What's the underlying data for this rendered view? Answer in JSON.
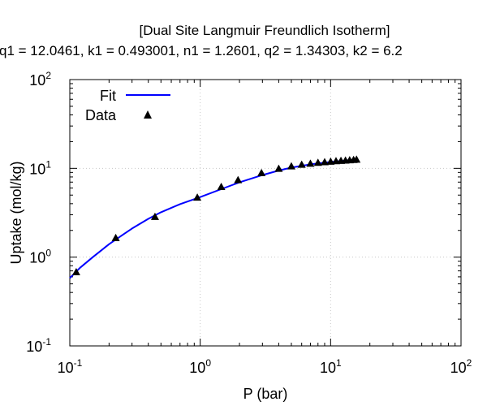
{
  "chart_data": {
    "type": "line",
    "title": "[Dual Site Langmuir Freundlich Isotherm]",
    "subtitle": "q1 = 12.0461, k1 = 0.493001, n1 = 1.2601, q2 = 1.34303, k2 = 6.2",
    "xlabel": "P (bar)",
    "ylabel": "Uptake (mol/kg)",
    "x_scale": "log",
    "y_scale": "log",
    "xlim": [
      0.1,
      100
    ],
    "ylim": [
      0.1,
      100
    ],
    "x_ticks": [
      {
        "base": "10",
        "exp": "-1",
        "value": 0.1
      },
      {
        "base": "10",
        "exp": "0",
        "value": 1
      },
      {
        "base": "10",
        "exp": "1",
        "value": 10
      },
      {
        "base": "10",
        "exp": "2",
        "value": 100
      }
    ],
    "y_ticks": [
      {
        "base": "10",
        "exp": "-1",
        "value": 0.1
      },
      {
        "base": "10",
        "exp": "0",
        "value": 1
      },
      {
        "base": "10",
        "exp": "1",
        "value": 10
      },
      {
        "base": "10",
        "exp": "2",
        "value": 100
      }
    ],
    "grid": true,
    "legend_position": "top-left",
    "series": [
      {
        "name": "Fit",
        "kind": "line",
        "color": "#0000ff",
        "x": [
          0.1,
          0.12,
          0.15,
          0.2,
          0.25,
          0.3,
          0.4,
          0.5,
          0.7,
          1.0,
          1.5,
          2.0,
          3.0,
          4.0,
          5.0,
          7.0,
          10.0,
          13.0,
          15.8
        ],
        "y": [
          0.58,
          0.76,
          1.0,
          1.4,
          1.75,
          2.1,
          2.7,
          3.2,
          3.95,
          4.75,
          5.95,
          6.95,
          8.4,
          9.45,
          10.2,
          11.1,
          11.8,
          12.2,
          12.5
        ]
      },
      {
        "name": "Data",
        "kind": "scatter",
        "marker": "triangle",
        "color": "#000000",
        "x": [
          0.112,
          0.225,
          0.45,
          0.95,
          1.45,
          1.95,
          2.95,
          4.0,
          5.0,
          6.0,
          7.0,
          8.0,
          9.0,
          10.0,
          11.0,
          12.0,
          13.0,
          14.0,
          15.0,
          15.8
        ],
        "y": [
          0.68,
          1.65,
          2.85,
          4.7,
          6.2,
          7.4,
          8.9,
          9.95,
          10.6,
          11.05,
          11.35,
          11.6,
          11.8,
          11.95,
          12.1,
          12.2,
          12.3,
          12.4,
          12.5,
          12.6
        ]
      }
    ]
  }
}
